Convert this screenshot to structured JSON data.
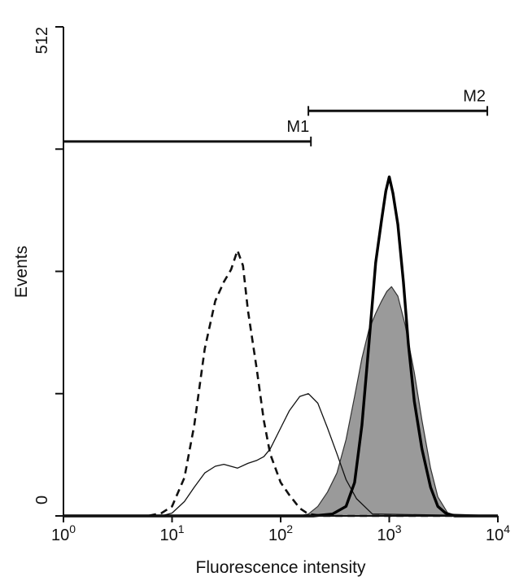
{
  "chart_data": {
    "type": "area",
    "xlabel": "Fluorescence intensity",
    "ylabel": "Events",
    "xscale": "log",
    "xlim": [
      1,
      10000
    ],
    "ylim": [
      0,
      512
    ],
    "x_ticks": [
      {
        "base": "10",
        "exp": "0",
        "value": 1
      },
      {
        "base": "10",
        "exp": "1",
        "value": 10
      },
      {
        "base": "10",
        "exp": "2",
        "value": 100
      },
      {
        "base": "10",
        "exp": "3",
        "value": 1000
      },
      {
        "base": "10",
        "exp": "4",
        "value": 10000
      }
    ],
    "y_ticks": [
      {
        "value": 0,
        "label": "0"
      },
      {
        "value": 128,
        "label": ""
      },
      {
        "value": 256,
        "label": ""
      },
      {
        "value": 384,
        "label": ""
      },
      {
        "value": 512,
        "label": "512"
      }
    ],
    "gates": [
      {
        "label": "M1",
        "x_start": 1,
        "x_end": 190,
        "y": 392
      },
      {
        "label": "M2",
        "x_start": 180,
        "x_end": 8000,
        "y": 424
      }
    ],
    "series": [
      {
        "style": "dashed",
        "color": "#111111",
        "x": [
          1,
          6,
          8,
          10,
          13,
          16,
          20,
          25,
          30,
          35,
          40,
          45,
          50,
          60,
          70,
          80,
          100,
          120,
          150,
          180,
          250,
          10000
        ],
        "y": [
          0,
          0,
          3,
          10,
          40,
          95,
          175,
          225,
          245,
          258,
          278,
          262,
          215,
          155,
          100,
          65,
          35,
          22,
          8,
          2,
          0,
          0
        ]
      },
      {
        "style": "thin",
        "color": "#111111",
        "x": [
          1,
          8,
          10,
          13,
          16,
          20,
          25,
          30,
          40,
          50,
          60,
          70,
          80,
          100,
          120,
          150,
          180,
          220,
          270,
          330,
          400,
          500,
          700,
          10000
        ],
        "y": [
          0,
          0,
          3,
          15,
          30,
          45,
          52,
          54,
          50,
          55,
          58,
          62,
          70,
          92,
          110,
          125,
          128,
          118,
          92,
          65,
          38,
          18,
          2,
          0
        ]
      },
      {
        "style": "filled",
        "color": "#9a9a9a",
        "x": [
          1,
          150,
          180,
          220,
          270,
          330,
          400,
          480,
          560,
          650,
          750,
          850,
          950,
          1050,
          1200,
          1400,
          1700,
          2000,
          2400,
          2800,
          3500,
          10000
        ],
        "y": [
          0,
          0,
          2,
          10,
          25,
          45,
          80,
          125,
          165,
          195,
          212,
          225,
          235,
          240,
          230,
          200,
          150,
          100,
          50,
          20,
          2,
          0
        ]
      },
      {
        "style": "bold",
        "color": "#000000",
        "x": [
          1,
          200,
          300,
          400,
          480,
          560,
          650,
          750,
          850,
          930,
          1000,
          1080,
          1200,
          1350,
          1500,
          1700,
          2000,
          2400,
          2800,
          3300,
          4000,
          10000
        ],
        "y": [
          0,
          0,
          2,
          10,
          35,
          95,
          180,
          265,
          310,
          340,
          355,
          338,
          305,
          245,
          180,
          120,
          70,
          30,
          10,
          3,
          0,
          0
        ]
      }
    ]
  }
}
